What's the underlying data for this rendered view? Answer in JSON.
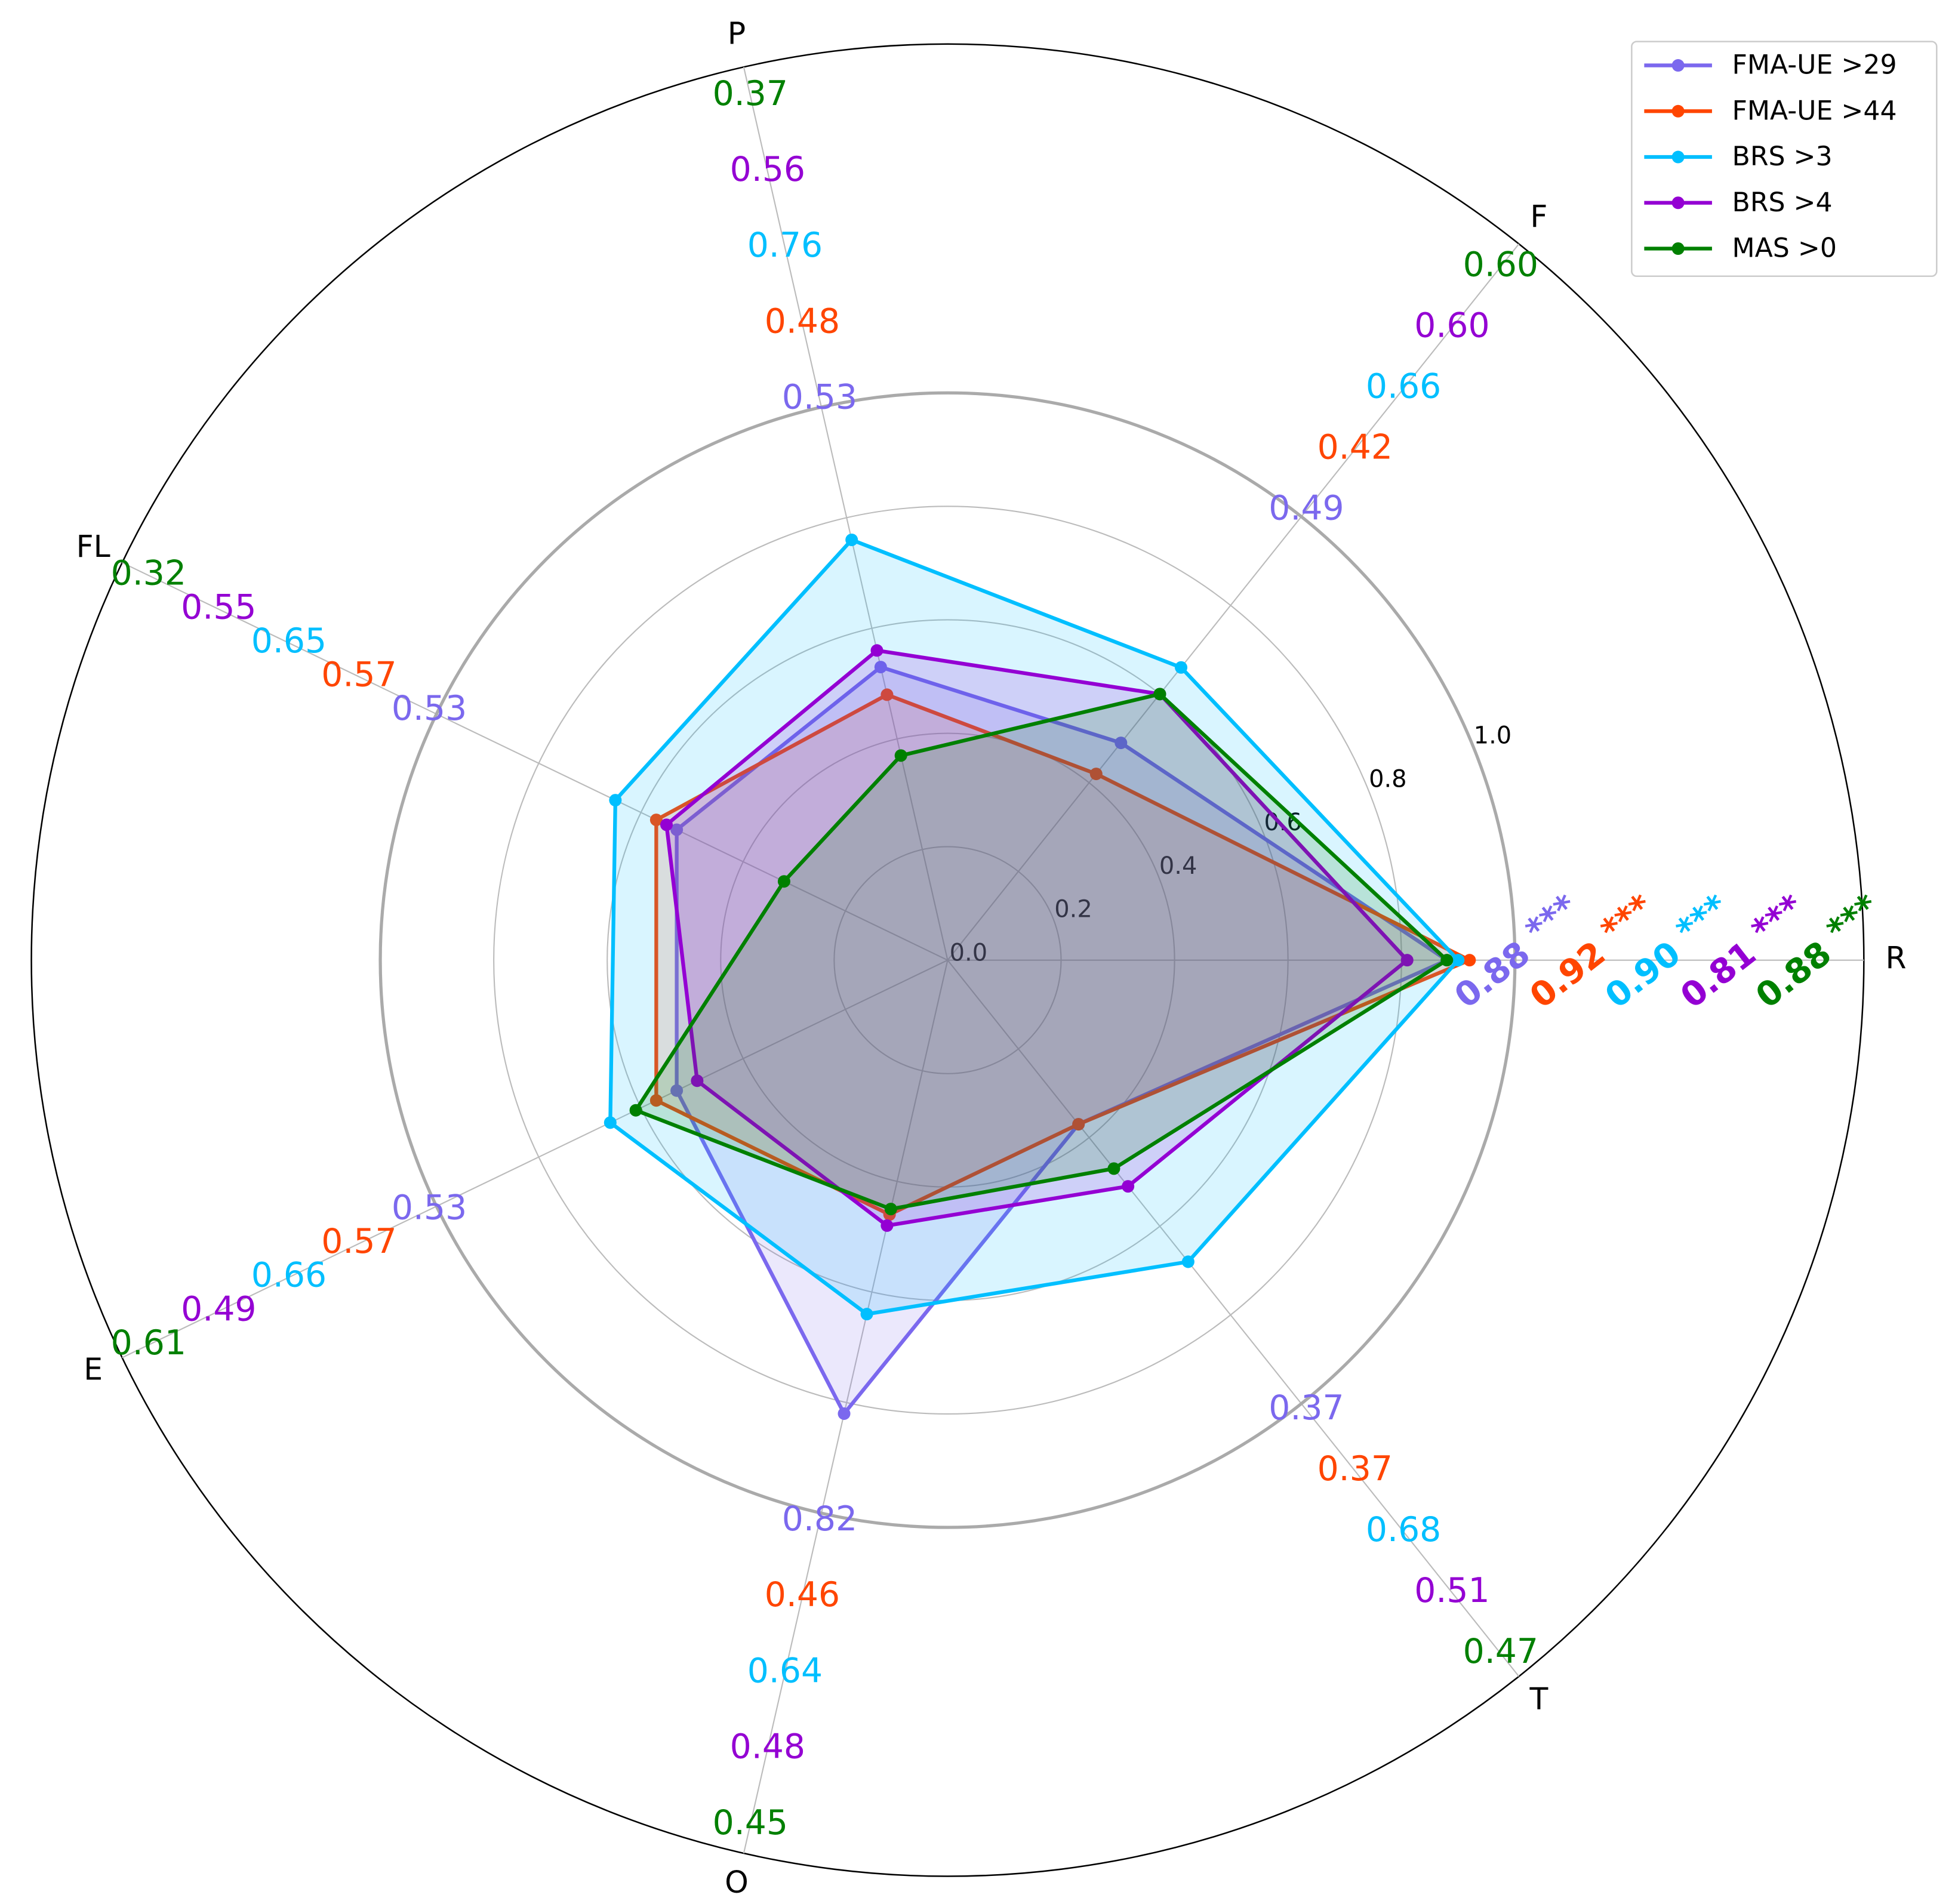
{
  "chart_data": {
    "type": "radar",
    "categories": [
      "R",
      "F",
      "P",
      "FL",
      "E",
      "O",
      "T"
    ],
    "ylim": [
      0,
      1.615
    ],
    "yticks": [
      {
        "value": 0,
        "label": "0.0"
      },
      0.2,
      0.4,
      0.6,
      0.8,
      {
        "value": 1,
        "label": "1.0"
      }
    ],
    "grid": true,
    "legend": "upper right",
    "series": [
      {
        "name": "FMA-UE >29",
        "color": "#7b68ee",
        "values": [
          0.88,
          0.49,
          0.53,
          0.53,
          0.53,
          0.82,
          0.37
        ],
        "value_labels": [
          "0.88",
          "0.49",
          "0.53",
          "0.53",
          "0.53",
          "0.82",
          "0.37"
        ],
        "significance": "***"
      },
      {
        "name": "FMA-UE >44",
        "color": "#ff4500",
        "values": [
          0.92,
          0.42,
          0.48,
          0.57,
          0.57,
          0.46,
          0.37
        ],
        "value_labels": [
          "0.92",
          "0.42",
          "0.48",
          "0.57",
          "0.57",
          "0.46",
          "0.37"
        ],
        "significance": "***"
      },
      {
        "name": "BRS >3",
        "color": "#00bfff",
        "values": [
          0.9,
          0.66,
          0.76,
          0.65,
          0.66,
          0.64,
          0.68
        ],
        "value_labels": [
          "0.90",
          "0.66",
          "0.76",
          "0.65",
          "0.66",
          "0.64",
          "0.68"
        ],
        "significance": "***"
      },
      {
        "name": "BRS >4",
        "color": "#9400d3",
        "values": [
          0.81,
          0.6,
          0.56,
          0.55,
          0.49,
          0.48,
          0.51
        ],
        "value_labels": [
          "0.81",
          "0.60",
          "0.56",
          "0.55",
          "0.49",
          "0.48",
          "0.51"
        ],
        "significance": "***"
      },
      {
        "name": "MAS >0",
        "color": "#008000",
        "values": [
          0.88,
          0.6,
          0.37,
          0.32,
          0.61,
          0.45,
          0.47
        ],
        "value_labels": [
          "0.88",
          "0.60",
          "0.37",
          "0.32",
          "0.61",
          "0.45",
          "0.47"
        ],
        "significance": "***"
      }
    ]
  }
}
